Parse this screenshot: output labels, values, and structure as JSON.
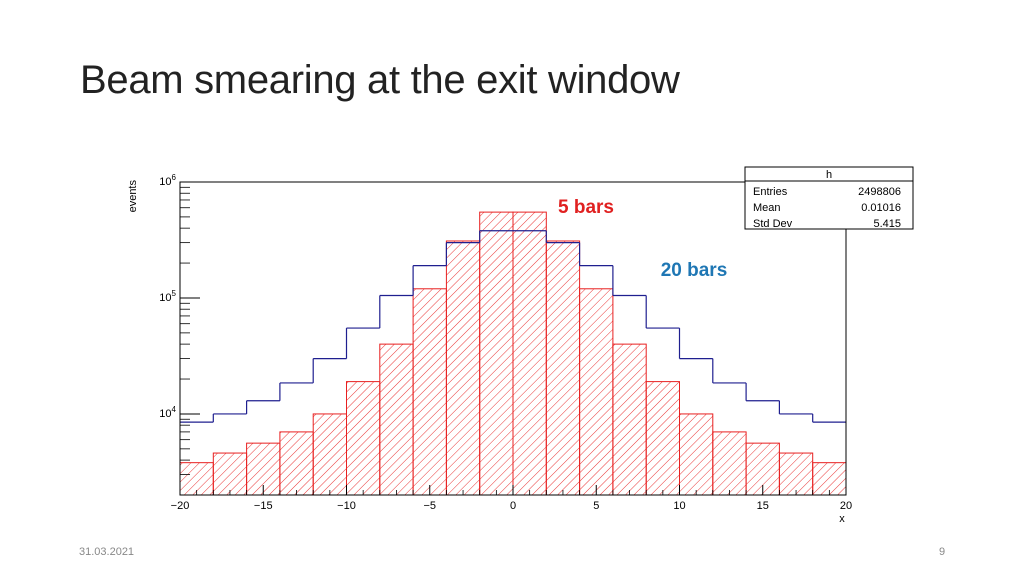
{
  "slide": {
    "title": "Beam smearing at the exit window",
    "date": "31.03.2021",
    "page_number": "9"
  },
  "chart_data": {
    "type": "histogram",
    "title": "",
    "xlabel": "x",
    "ylabel": "events",
    "xlim": [
      -20,
      20
    ],
    "ylim": [
      2000,
      1000000
    ],
    "yscale": "log",
    "x_ticks": [
      -20,
      -15,
      -10,
      -5,
      0,
      5,
      10,
      15,
      20
    ],
    "x_tick_labels": [
      "−20",
      "−15",
      "−10",
      "−5",
      "0",
      "5",
      "10",
      "15",
      "20"
    ],
    "y_ticks": [
      {
        "value": 10000,
        "base": "10",
        "exp": "4"
      },
      {
        "value": 100000,
        "base": "10",
        "exp": "5"
      },
      {
        "value": 1000000,
        "base": "10",
        "exp": "6"
      }
    ],
    "bin_edges": [
      -20,
      -18,
      -16,
      -14,
      -12,
      -10,
      -8,
      -6,
      -4,
      -2,
      0,
      2,
      4,
      6,
      8,
      10,
      12,
      14,
      16,
      18,
      20
    ],
    "series": [
      {
        "name": "20 bars",
        "color": "#1f1f8f",
        "label_color": "#1f77b4",
        "style": "line",
        "values": [
          8500,
          10000,
          13000,
          18500,
          30000,
          55000,
          105000,
          190000,
          300000,
          380000,
          380000,
          300000,
          190000,
          105000,
          55000,
          30000,
          18500,
          13000,
          10000,
          8500
        ]
      },
      {
        "name": "5 bars",
        "color": "#e82020",
        "label_color": "#e02020",
        "style": "hatched",
        "values": [
          3800,
          4600,
          5600,
          7000,
          10000,
          19000,
          40000,
          120000,
          310000,
          550000,
          550000,
          310000,
          120000,
          40000,
          19000,
          10000,
          7000,
          5600,
          4600,
          3800
        ]
      }
    ],
    "stats_box": {
      "name": "h",
      "rows": [
        {
          "label": "Entries",
          "value": "2498806"
        },
        {
          "label": "Mean",
          "value": "0.01016"
        },
        {
          "label": "Std Dev",
          "value": "5.415"
        }
      ]
    }
  }
}
